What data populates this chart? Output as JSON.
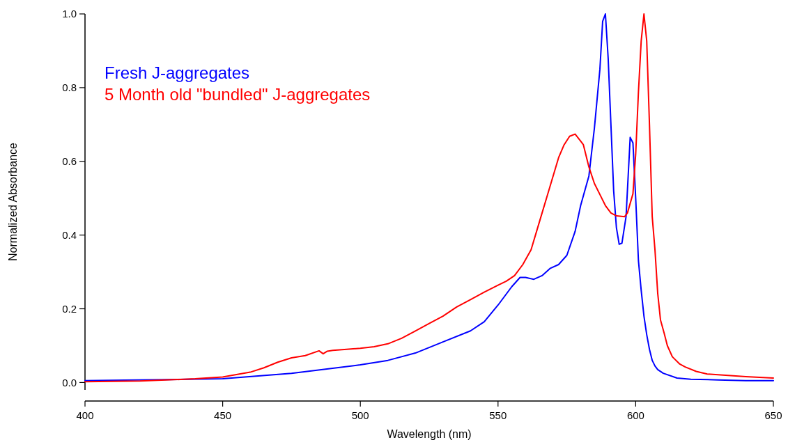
{
  "chart_data": {
    "type": "line",
    "xlabel": "Wavelength (nm)",
    "ylabel": "Normalized Absorbance",
    "xlim": [
      400,
      650
    ],
    "xticks": [
      400,
      450,
      500,
      550,
      600,
      650
    ],
    "ylim": [
      -0.02,
      1.0
    ],
    "yticks": [
      {
        "value": 0,
        "label": "0.0"
      },
      0.2,
      0.4,
      0.6,
      0.8,
      {
        "value": 1,
        "label": "1.0"
      }
    ],
    "grid": false,
    "legend": "top left",
    "marker": "none",
    "line_style": "solid",
    "series": [
      {
        "name": "Fresh J-aggregates",
        "color": "#0000ff",
        "x": [
          400,
          450,
          475,
          500,
          510,
          520,
          530,
          540,
          545,
          550,
          555,
          558,
          560,
          563,
          566,
          569,
          572,
          575,
          578,
          580,
          583,
          585,
          587,
          588,
          589,
          590,
          591,
          592,
          593,
          594,
          595,
          596.5,
          598,
          599,
          600,
          601,
          602,
          603,
          604,
          605,
          606,
          607,
          608,
          610,
          615,
          620,
          630,
          640,
          650
        ],
        "values": [
          0.005,
          0.01,
          0.025,
          0.048,
          0.06,
          0.08,
          0.11,
          0.14,
          0.165,
          0.21,
          0.26,
          0.285,
          0.285,
          0.28,
          0.29,
          0.31,
          0.32,
          0.345,
          0.41,
          0.48,
          0.56,
          0.69,
          0.85,
          0.98,
          1.0,
          0.88,
          0.7,
          0.52,
          0.42,
          0.375,
          0.378,
          0.45,
          0.665,
          0.65,
          0.5,
          0.33,
          0.25,
          0.18,
          0.13,
          0.09,
          0.06,
          0.045,
          0.035,
          0.025,
          0.012,
          0.009,
          0.007,
          0.005,
          0.005
        ]
      },
      {
        "name": "5 Month old \"bundled\" J-aggregates",
        "color": "#ff0000",
        "x": [
          400,
          420,
          440,
          450,
          460,
          465,
          470,
          475,
          480,
          485,
          486.5,
          488,
          490,
          495,
          500,
          505,
          510,
          515,
          520,
          525,
          530,
          535,
          540,
          545,
          550,
          553,
          556,
          559,
          562,
          564,
          566,
          568,
          570,
          572,
          574,
          576,
          578,
          580,
          581,
          583,
          585,
          587,
          589,
          591,
          593,
          596,
          597,
          599,
          600,
          601,
          602,
          603,
          604,
          605,
          606,
          607,
          608,
          609,
          610.3,
          611.5,
          613.3,
          616,
          618,
          622,
          626,
          640,
          650
        ],
        "values": [
          0.002,
          0.004,
          0.01,
          0.015,
          0.028,
          0.04,
          0.055,
          0.067,
          0.073,
          0.086,
          0.078,
          0.085,
          0.087,
          0.09,
          0.093,
          0.097,
          0.105,
          0.12,
          0.14,
          0.16,
          0.18,
          0.205,
          0.225,
          0.245,
          0.264,
          0.275,
          0.29,
          0.32,
          0.36,
          0.41,
          0.46,
          0.51,
          0.56,
          0.61,
          0.645,
          0.668,
          0.674,
          0.655,
          0.645,
          0.585,
          0.54,
          0.51,
          0.48,
          0.46,
          0.452,
          0.45,
          0.46,
          0.512,
          0.62,
          0.789,
          0.927,
          1.0,
          0.927,
          0.7,
          0.45,
          0.36,
          0.242,
          0.17,
          0.135,
          0.1,
          0.07,
          0.05,
          0.042,
          0.03,
          0.023,
          0.016,
          0.012
        ]
      }
    ]
  }
}
